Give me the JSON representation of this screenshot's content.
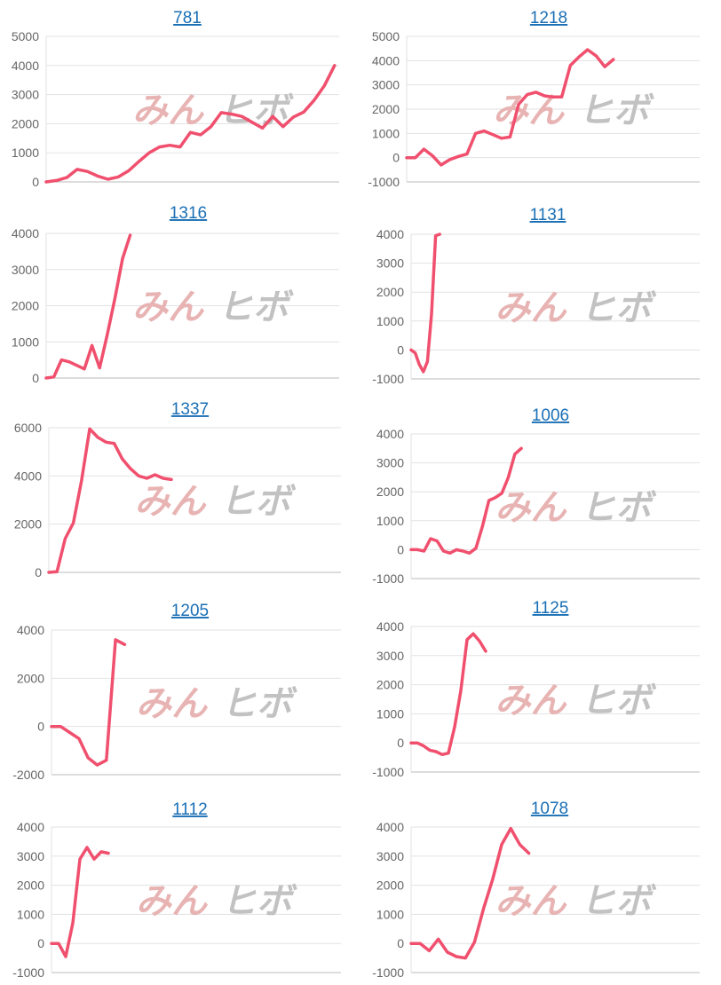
{
  "watermark": {
    "part_a": "みん",
    "part_b": "ヒボ"
  },
  "colors": {
    "line": "#f0506e",
    "title": "#1a6fb5",
    "grid": "#e2e2e2"
  },
  "chart_data": [
    {
      "type": "line",
      "title": "781",
      "ylim": [
        0,
        5000
      ],
      "yticks": [
        0,
        1000,
        2000,
        3000,
        4000,
        5000
      ],
      "series": [
        {
          "values": [
            0,
            50,
            150,
            430,
            360,
            200,
            90,
            170,
            380,
            700,
            1000,
            1200,
            1260,
            1200,
            1700,
            1620,
            1900,
            2380,
            2330,
            2250,
            2050,
            1850,
            2250,
            1900,
            2230,
            2400,
            2800,
            3300,
            4000
          ]
        }
      ]
    },
    {
      "type": "line",
      "title": "1218",
      "ylim": [
        -1000,
        5000
      ],
      "yticks": [
        -1000,
        0,
        1000,
        2000,
        3000,
        4000,
        5000
      ],
      "series": [
        {
          "values": [
            0,
            0,
            350,
            80,
            -300,
            -80,
            50,
            150,
            1000,
            1100,
            950,
            800,
            850,
            2200,
            2600,
            2700,
            2550,
            2500,
            2500,
            3800,
            4150,
            4450,
            4200,
            3750,
            4050
          ]
        }
      ]
    },
    {
      "type": "line",
      "title": "1316",
      "ylim": [
        0,
        4000
      ],
      "yticks": [
        0,
        1000,
        2000,
        3000,
        4000
      ],
      "series": [
        {
          "values": [
            0,
            30,
            500,
            450,
            350,
            250,
            900,
            280,
            1200,
            2200,
            3300,
            3950
          ]
        }
      ]
    },
    {
      "type": "line",
      "title": "1131",
      "ylim": [
        -1000,
        4000
      ],
      "yticks": [
        -1000,
        0,
        1000,
        2000,
        3000,
        4000
      ],
      "series": [
        {
          "values": [
            0,
            -100,
            -500,
            -750,
            -400,
            1250,
            3950,
            4000
          ]
        }
      ]
    },
    {
      "type": "line",
      "title": "1337",
      "ylim": [
        0,
        6000
      ],
      "yticks": [
        0,
        2000,
        4000,
        6000
      ],
      "series": [
        {
          "values": [
            0,
            30,
            1400,
            2050,
            3800,
            5950,
            5600,
            5400,
            5350,
            4700,
            4300,
            4000,
            3900,
            4050,
            3900,
            3850
          ]
        }
      ]
    },
    {
      "type": "line",
      "title": "1006",
      "ylim": [
        -1000,
        4000
      ],
      "yticks": [
        -1000,
        0,
        1000,
        2000,
        3000,
        4000
      ],
      "series": [
        {
          "values": [
            0,
            0,
            -50,
            380,
            300,
            -50,
            -120,
            0,
            -50,
            -120,
            50,
            800,
            1700,
            1800,
            1950,
            2500,
            3300,
            3500
          ]
        }
      ]
    },
    {
      "type": "line",
      "title": "1205",
      "ylim": [
        -2000,
        4000
      ],
      "yticks": [
        -2000,
        0,
        2000,
        4000
      ],
      "series": [
        {
          "values": [
            0,
            0,
            -250,
            -500,
            -1300,
            -1600,
            -1400,
            3600,
            3400
          ]
        }
      ]
    },
    {
      "type": "line",
      "title": "1125",
      "ylim": [
        -1000,
        4000
      ],
      "yticks": [
        -1000,
        0,
        1000,
        2000,
        3000,
        4000
      ],
      "series": [
        {
          "values": [
            0,
            0,
            -100,
            -250,
            -300,
            -400,
            -350,
            550,
            1800,
            3550,
            3750,
            3500,
            3150
          ]
        }
      ]
    },
    {
      "type": "line",
      "title": "1112",
      "ylim": [
        -1000,
        4000
      ],
      "yticks": [
        -1000,
        0,
        1000,
        2000,
        3000,
        4000
      ],
      "series": [
        {
          "values": [
            0,
            0,
            -450,
            700,
            2900,
            3300,
            2900,
            3150,
            3100
          ]
        }
      ]
    },
    {
      "type": "line",
      "title": "1078",
      "ylim": [
        -1000,
        4000
      ],
      "yticks": [
        -1000,
        0,
        1000,
        2000,
        3000,
        4000
      ],
      "series": [
        {
          "values": [
            0,
            0,
            -250,
            150,
            -300,
            -450,
            -500,
            50,
            1200,
            2200,
            3400,
            3950,
            3400,
            3100
          ]
        }
      ]
    }
  ]
}
